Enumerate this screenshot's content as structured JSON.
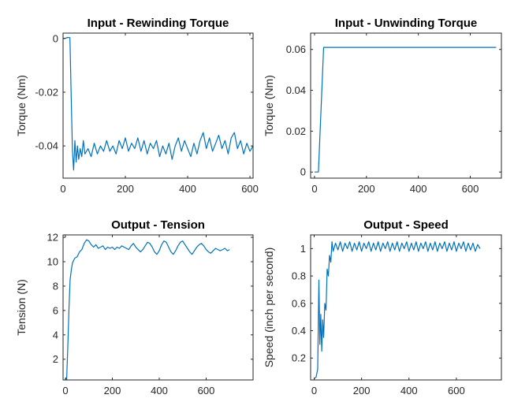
{
  "chart_data": [
    {
      "type": "line",
      "title": "Input - Rewinding Torque",
      "xlabel": "",
      "ylabel": "Torque (Nm)",
      "xlim": [
        0,
        610
      ],
      "ylim": [
        -0.052,
        0.002
      ],
      "xticks": [
        0,
        200,
        400,
        600
      ],
      "xtick_labels": [
        "0",
        "200",
        "400",
        "600"
      ],
      "yticks": [
        0,
        -0.02,
        -0.04
      ],
      "ytick_labels": [
        "0",
        "-0.02",
        "-0.04"
      ],
      "grid": false,
      "color": "#0072bd",
      "x": [
        0,
        8,
        15,
        22,
        27,
        30,
        34,
        38,
        42,
        46,
        50,
        55,
        60,
        65,
        70,
        80,
        90,
        100,
        110,
        120,
        130,
        140,
        150,
        160,
        170,
        180,
        190,
        200,
        210,
        220,
        230,
        240,
        250,
        260,
        270,
        280,
        290,
        300,
        310,
        320,
        330,
        340,
        350,
        360,
        370,
        380,
        390,
        400,
        410,
        420,
        430,
        440,
        450,
        460,
        470,
        480,
        490,
        500,
        510,
        520,
        530,
        540,
        550,
        560,
        570,
        580,
        590,
        600,
        610
      ],
      "y": [
        0.0,
        0.0001,
        0.0004,
        0.0003,
        -0.027,
        -0.042,
        -0.049,
        -0.038,
        -0.046,
        -0.04,
        -0.045,
        -0.041,
        -0.044,
        -0.038,
        -0.043,
        -0.041,
        -0.044,
        -0.039,
        -0.043,
        -0.04,
        -0.042,
        -0.038,
        -0.042,
        -0.04,
        -0.043,
        -0.038,
        -0.041,
        -0.037,
        -0.042,
        -0.039,
        -0.041,
        -0.037,
        -0.042,
        -0.038,
        -0.043,
        -0.039,
        -0.041,
        -0.038,
        -0.044,
        -0.04,
        -0.043,
        -0.039,
        -0.045,
        -0.04,
        -0.037,
        -0.042,
        -0.038,
        -0.041,
        -0.044,
        -0.039,
        -0.043,
        -0.038,
        -0.035,
        -0.041,
        -0.037,
        -0.042,
        -0.039,
        -0.036,
        -0.041,
        -0.038,
        -0.043,
        -0.037,
        -0.035,
        -0.041,
        -0.038,
        -0.043,
        -0.039,
        -0.042,
        -0.04
      ]
    },
    {
      "type": "line",
      "title": "Input - Unwinding Torque",
      "xlabel": "",
      "ylabel": "Torque (Nm)",
      "xlim": [
        -15,
        720
      ],
      "ylim": [
        -0.003,
        0.068
      ],
      "xticks": [
        0,
        200,
        400,
        600
      ],
      "xtick_labels": [
        "0",
        "200",
        "400",
        "600"
      ],
      "yticks": [
        0,
        0.02,
        0.04,
        0.06
      ],
      "ytick_labels": [
        "0",
        "0.02",
        "0.04",
        "0.06"
      ],
      "grid": false,
      "color": "#0072bd",
      "x": [
        0,
        15,
        35,
        100,
        300,
        500,
        700
      ],
      "y": [
        0,
        0,
        0.061,
        0.061,
        0.061,
        0.061,
        0.061
      ]
    },
    {
      "type": "line",
      "title": "Output - Tension",
      "xlabel": "",
      "ylabel": "Tension (N)",
      "xlim": [
        -10,
        800
      ],
      "ylim": [
        0.3,
        12.2
      ],
      "xticks": [
        0,
        200,
        400,
        600
      ],
      "xtick_labels": [
        "0",
        "200",
        "400",
        "600"
      ],
      "yticks": [
        2,
        4,
        6,
        8,
        10,
        12
      ],
      "ytick_labels": [
        "2",
        "4",
        "6",
        "8",
        "10",
        "12"
      ],
      "grid": false,
      "color": "#0072bd",
      "x": [
        0,
        5,
        10,
        15,
        20,
        25,
        30,
        40,
        50,
        60,
        70,
        80,
        90,
        100,
        110,
        120,
        130,
        140,
        150,
        160,
        170,
        180,
        190,
        200,
        210,
        220,
        230,
        240,
        250,
        260,
        270,
        280,
        290,
        300,
        310,
        320,
        330,
        340,
        350,
        360,
        370,
        380,
        390,
        400,
        410,
        420,
        430,
        440,
        450,
        460,
        470,
        480,
        490,
        500,
        510,
        520,
        530,
        540,
        550,
        560,
        570,
        580,
        590,
        600,
        610,
        620,
        630,
        640,
        650,
        660,
        670,
        680,
        690,
        700
      ],
      "y": [
        0.5,
        0.3,
        3.0,
        6.0,
        8.5,
        9.3,
        9.9,
        10.3,
        10.4,
        10.8,
        11.0,
        11.5,
        11.8,
        11.7,
        11.4,
        11.2,
        11.4,
        11.1,
        11.2,
        11.3,
        11.0,
        11.2,
        11.1,
        11.2,
        11.0,
        11.2,
        11.1,
        11.3,
        11.2,
        11.1,
        11.0,
        11.3,
        11.5,
        11.2,
        11.0,
        10.8,
        11.0,
        11.3,
        11.6,
        11.5,
        11.2,
        10.8,
        10.6,
        10.9,
        11.4,
        11.7,
        11.6,
        11.2,
        10.8,
        10.6,
        10.9,
        11.3,
        11.6,
        11.7,
        11.4,
        11.1,
        10.8,
        10.6,
        10.9,
        11.2,
        11.4,
        11.5,
        11.3,
        11.0,
        10.8,
        10.7,
        10.9,
        11.1,
        11.0,
        10.9,
        11.0,
        11.1,
        10.9,
        11.0
      ]
    },
    {
      "type": "line",
      "title": "Output - Speed",
      "xlabel": "",
      "ylabel": "Speed (inch per second)",
      "xlim": [
        -15,
        790
      ],
      "ylim": [
        0.04,
        1.1
      ],
      "xticks": [
        0,
        200,
        400,
        600
      ],
      "xtick_labels": [
        "0",
        "200",
        "400",
        "600"
      ],
      "yticks": [
        0.2,
        0.4,
        0.6,
        0.8,
        1
      ],
      "ytick_labels": [
        "0.2",
        "0.4",
        "0.6",
        "0.8",
        "1"
      ],
      "grid": false,
      "color": "#0072bd",
      "x": [
        0,
        8,
        15,
        20,
        24,
        28,
        32,
        36,
        40,
        45,
        50,
        55,
        60,
        65,
        70,
        75,
        80,
        90,
        100,
        110,
        120,
        130,
        140,
        150,
        160,
        170,
        180,
        190,
        200,
        210,
        220,
        230,
        240,
        250,
        260,
        270,
        280,
        290,
        300,
        310,
        320,
        330,
        340,
        350,
        360,
        370,
        380,
        390,
        400,
        410,
        420,
        430,
        440,
        450,
        460,
        470,
        480,
        490,
        500,
        510,
        520,
        530,
        540,
        550,
        560,
        570,
        580,
        590,
        600,
        610,
        620,
        630,
        640,
        650,
        660,
        670,
        680,
        690,
        700
      ],
      "y": [
        0.05,
        0.06,
        0.12,
        0.77,
        0.3,
        0.52,
        0.25,
        0.48,
        0.35,
        0.6,
        0.55,
        0.85,
        0.8,
        0.95,
        0.9,
        1.05,
        0.98,
        1.04,
        0.99,
        1.05,
        0.98,
        1.04,
        1.0,
        1.05,
        0.98,
        1.04,
        0.99,
        1.05,
        0.98,
        1.04,
        1.0,
        1.05,
        0.98,
        1.04,
        0.99,
        1.05,
        0.98,
        1.04,
        1.0,
        1.05,
        0.98,
        1.04,
        0.99,
        1.05,
        0.98,
        1.04,
        1.0,
        1.05,
        0.98,
        1.04,
        0.99,
        1.05,
        0.98,
        1.04,
        1.0,
        1.05,
        0.98,
        1.04,
        0.99,
        1.05,
        0.98,
        1.04,
        1.0,
        1.05,
        0.98,
        1.04,
        0.99,
        1.05,
        0.98,
        1.04,
        1.0,
        1.05,
        0.98,
        1.04,
        0.99,
        1.04,
        0.98,
        1.03,
        1.0
      ]
    }
  ]
}
